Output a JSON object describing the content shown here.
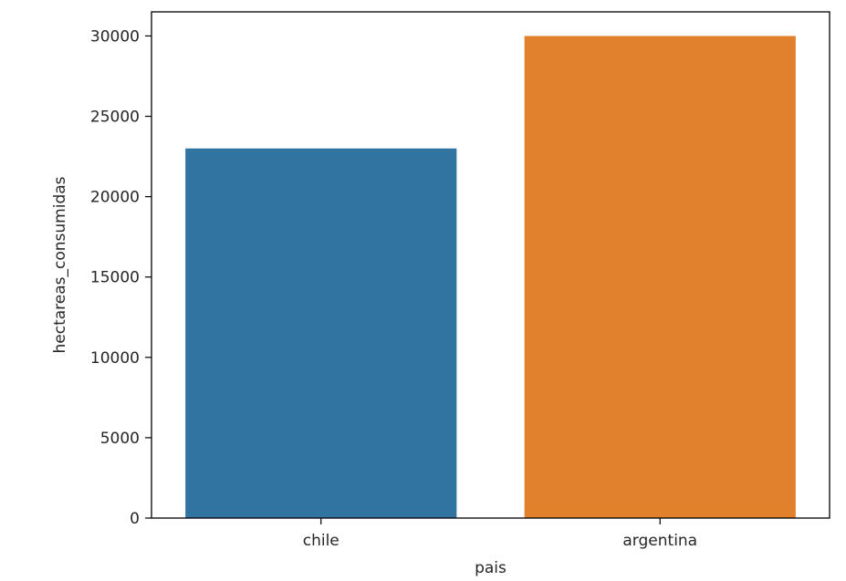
{
  "chart_data": {
    "type": "bar",
    "categories": [
      "chile",
      "argentina"
    ],
    "values": [
      23000,
      30000
    ],
    "colors": [
      "#3274a1",
      "#e1812c"
    ],
    "title": "",
    "xlabel": "pais",
    "ylabel": "hectareas_consumidas",
    "ylim": [
      0,
      31500
    ],
    "yticks": [
      0,
      5000,
      10000,
      15000,
      20000,
      25000,
      30000
    ],
    "ytick_labels": [
      "0",
      "5000",
      "10000",
      "15000",
      "20000",
      "25000",
      "30000"
    ],
    "grid": false,
    "legend": "none"
  }
}
